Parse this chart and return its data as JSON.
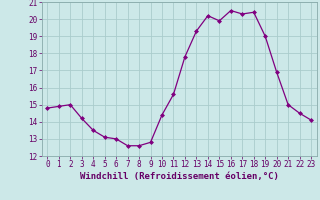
{
  "x": [
    0,
    1,
    2,
    3,
    4,
    5,
    6,
    7,
    8,
    9,
    10,
    11,
    12,
    13,
    14,
    15,
    16,
    17,
    18,
    19,
    20,
    21,
    22,
    23
  ],
  "y": [
    14.8,
    14.9,
    15.0,
    14.2,
    13.5,
    13.1,
    13.0,
    12.6,
    12.6,
    12.8,
    14.4,
    15.6,
    17.8,
    19.3,
    20.2,
    19.9,
    20.5,
    20.3,
    20.4,
    19.0,
    16.9,
    15.0,
    14.5,
    14.1
  ],
  "line_color": "#800080",
  "marker": "D",
  "marker_size": 2,
  "bg_color": "#cce8e8",
  "grid_color": "#aacccc",
  "xlabel": "Windchill (Refroidissement éolien,°C)",
  "xlim": [
    -0.5,
    23.5
  ],
  "ylim": [
    12,
    21
  ],
  "yticks": [
    12,
    13,
    14,
    15,
    16,
    17,
    18,
    19,
    20,
    21
  ],
  "xticks": [
    0,
    1,
    2,
    3,
    4,
    5,
    6,
    7,
    8,
    9,
    10,
    11,
    12,
    13,
    14,
    15,
    16,
    17,
    18,
    19,
    20,
    21,
    22,
    23
  ],
  "tick_label_fontsize": 5.5,
  "xlabel_fontsize": 6.5,
  "text_color": "#660066"
}
